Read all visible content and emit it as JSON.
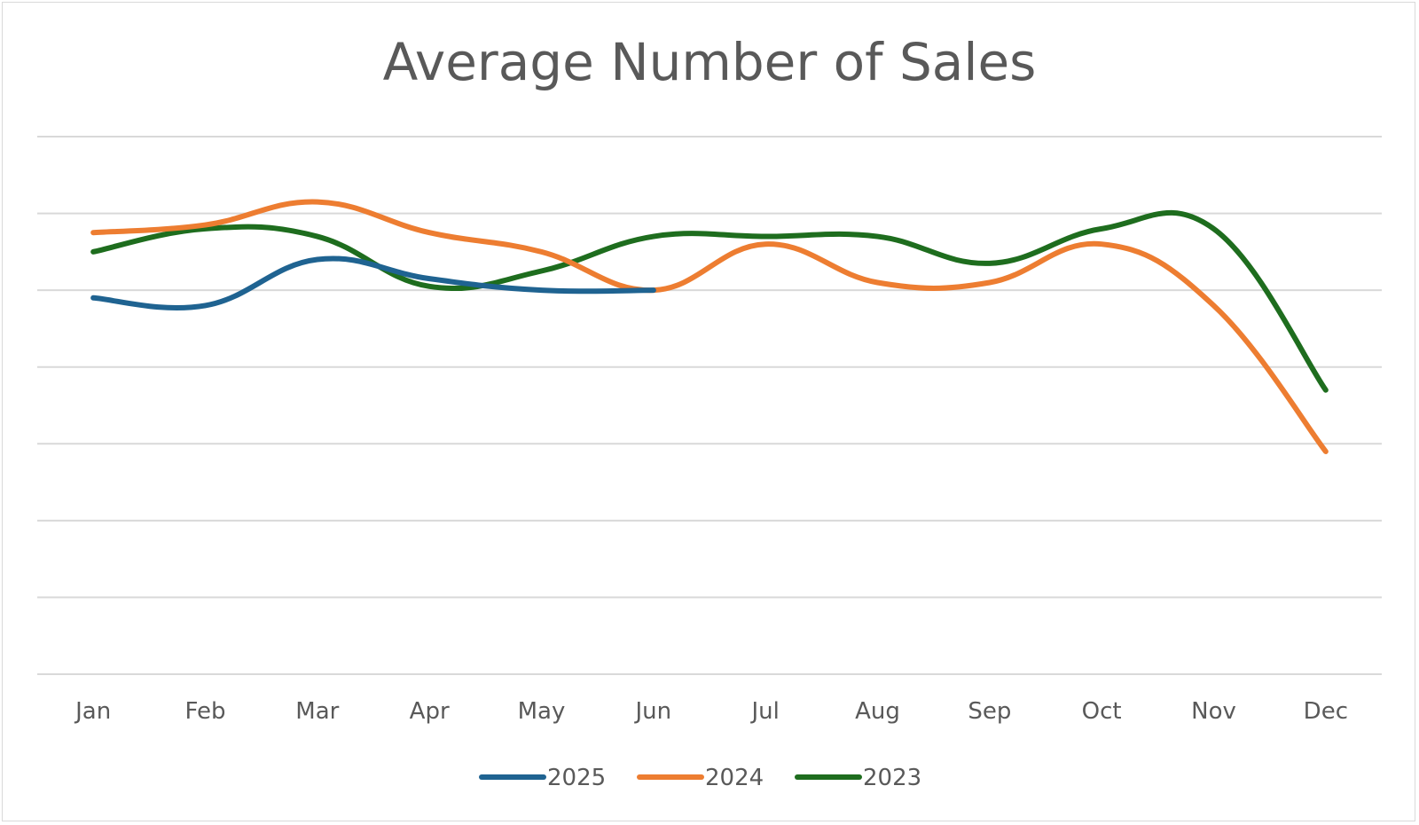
{
  "chart_data": {
    "type": "line",
    "title": "Average Number of Sales",
    "xlabel": "",
    "ylabel": "",
    "categories": [
      "Jan",
      "Feb",
      "Mar",
      "Apr",
      "May",
      "Jun",
      "Jul",
      "Aug",
      "Sep",
      "Oct",
      "Nov",
      "Dec"
    ],
    "ylim": [
      0,
      7
    ],
    "y_ticks_shown": false,
    "grid": true,
    "smooth": true,
    "legend_position": "bottom",
    "series": [
      {
        "name": "2025",
        "color": "#1f6391",
        "values": [
          4.9,
          4.8,
          5.4,
          5.15,
          5.0,
          5.0,
          null,
          null,
          null,
          null,
          null,
          null
        ]
      },
      {
        "name": "2024",
        "color": "#ed7d31",
        "values": [
          5.75,
          5.85,
          6.15,
          5.75,
          5.5,
          5.0,
          5.6,
          5.1,
          5.1,
          5.6,
          4.8,
          2.9
        ]
      },
      {
        "name": "2023",
        "color": "#1e6d1e",
        "values": [
          5.5,
          5.8,
          5.7,
          5.05,
          5.25,
          5.7,
          5.7,
          5.7,
          5.35,
          5.8,
          5.8,
          3.7
        ]
      }
    ]
  }
}
